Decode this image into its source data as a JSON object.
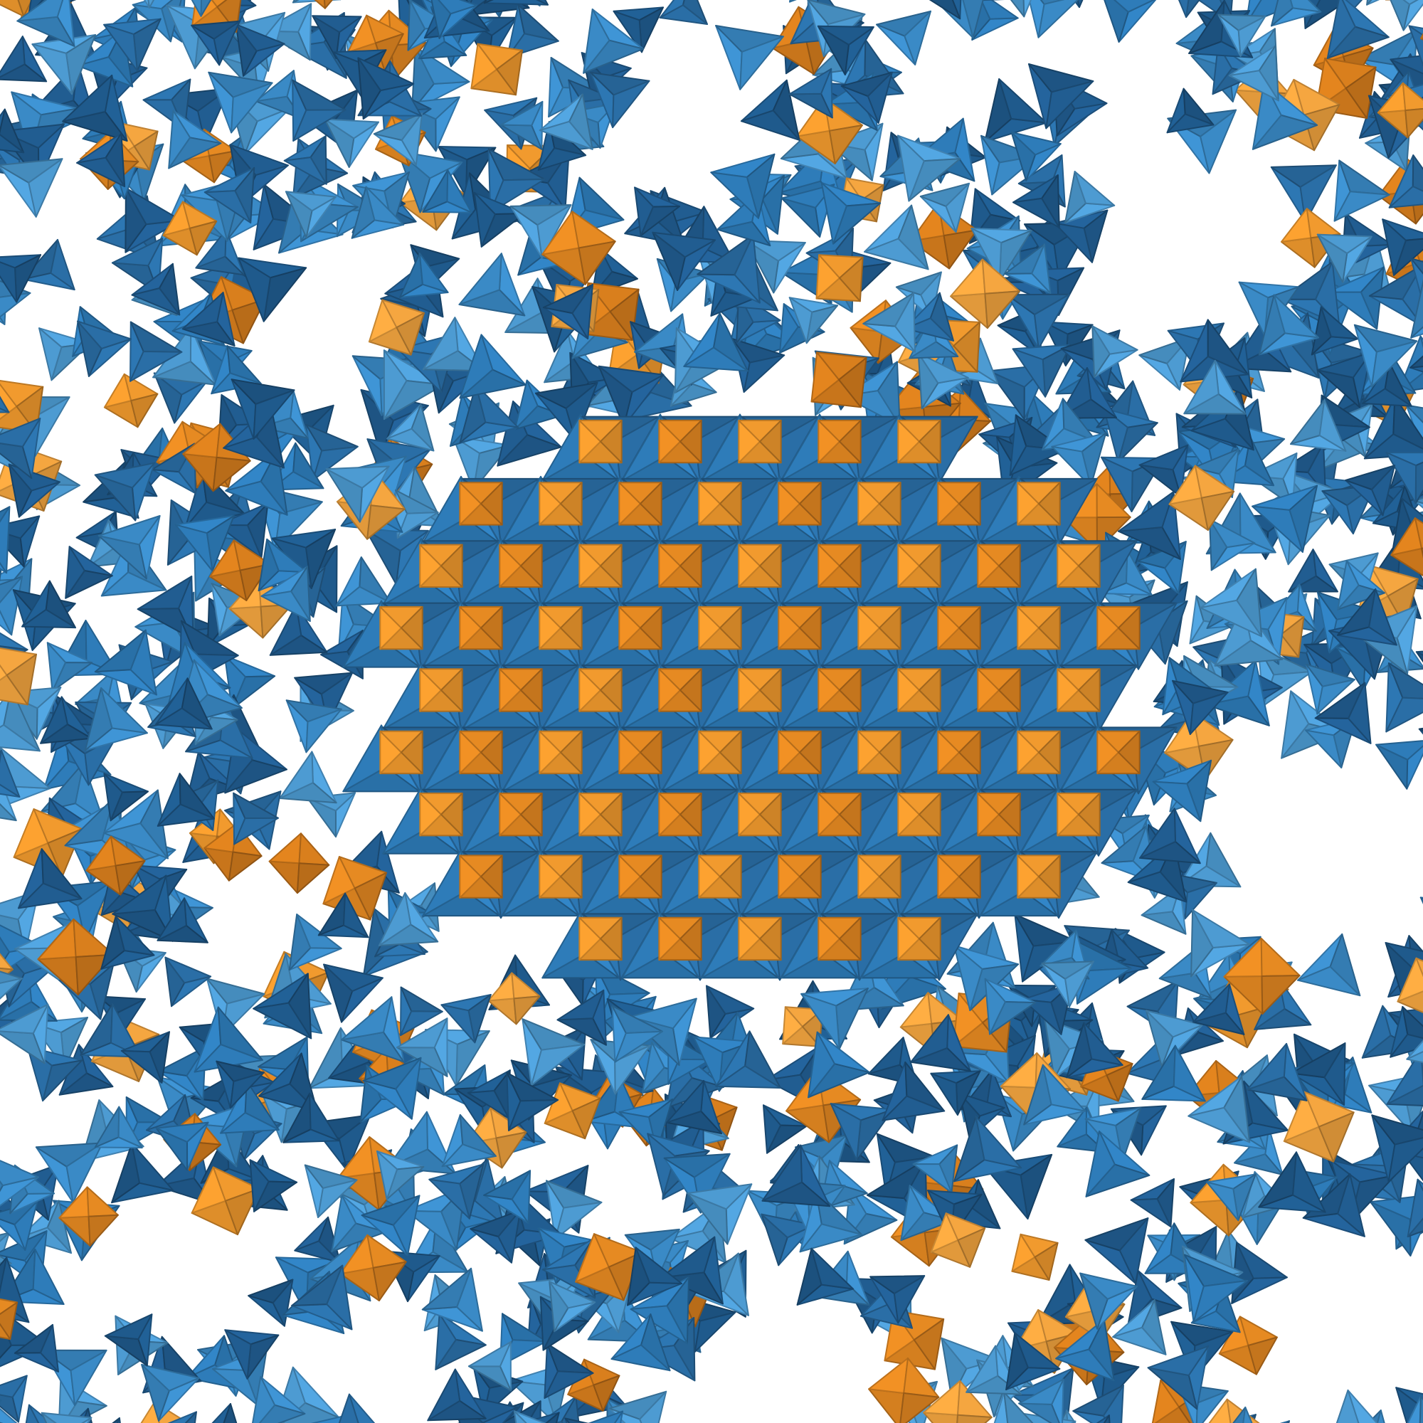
{
  "scene": {
    "description_kind": "render",
    "particles": {
      "tetrahedron": {
        "shape": "tetrahedron",
        "colors": [
          "#2e7cb9",
          "#2a6ea6",
          "#3a8ac6",
          "#215d91",
          "#4d9bd2",
          "#1f5a8c"
        ]
      },
      "octahedron": {
        "shape": "octahedron",
        "colors": [
          "#f19a2e",
          "#e68a22",
          "#f5a640",
          "#d97f1d"
        ]
      }
    },
    "background": "#ffffff"
  }
}
